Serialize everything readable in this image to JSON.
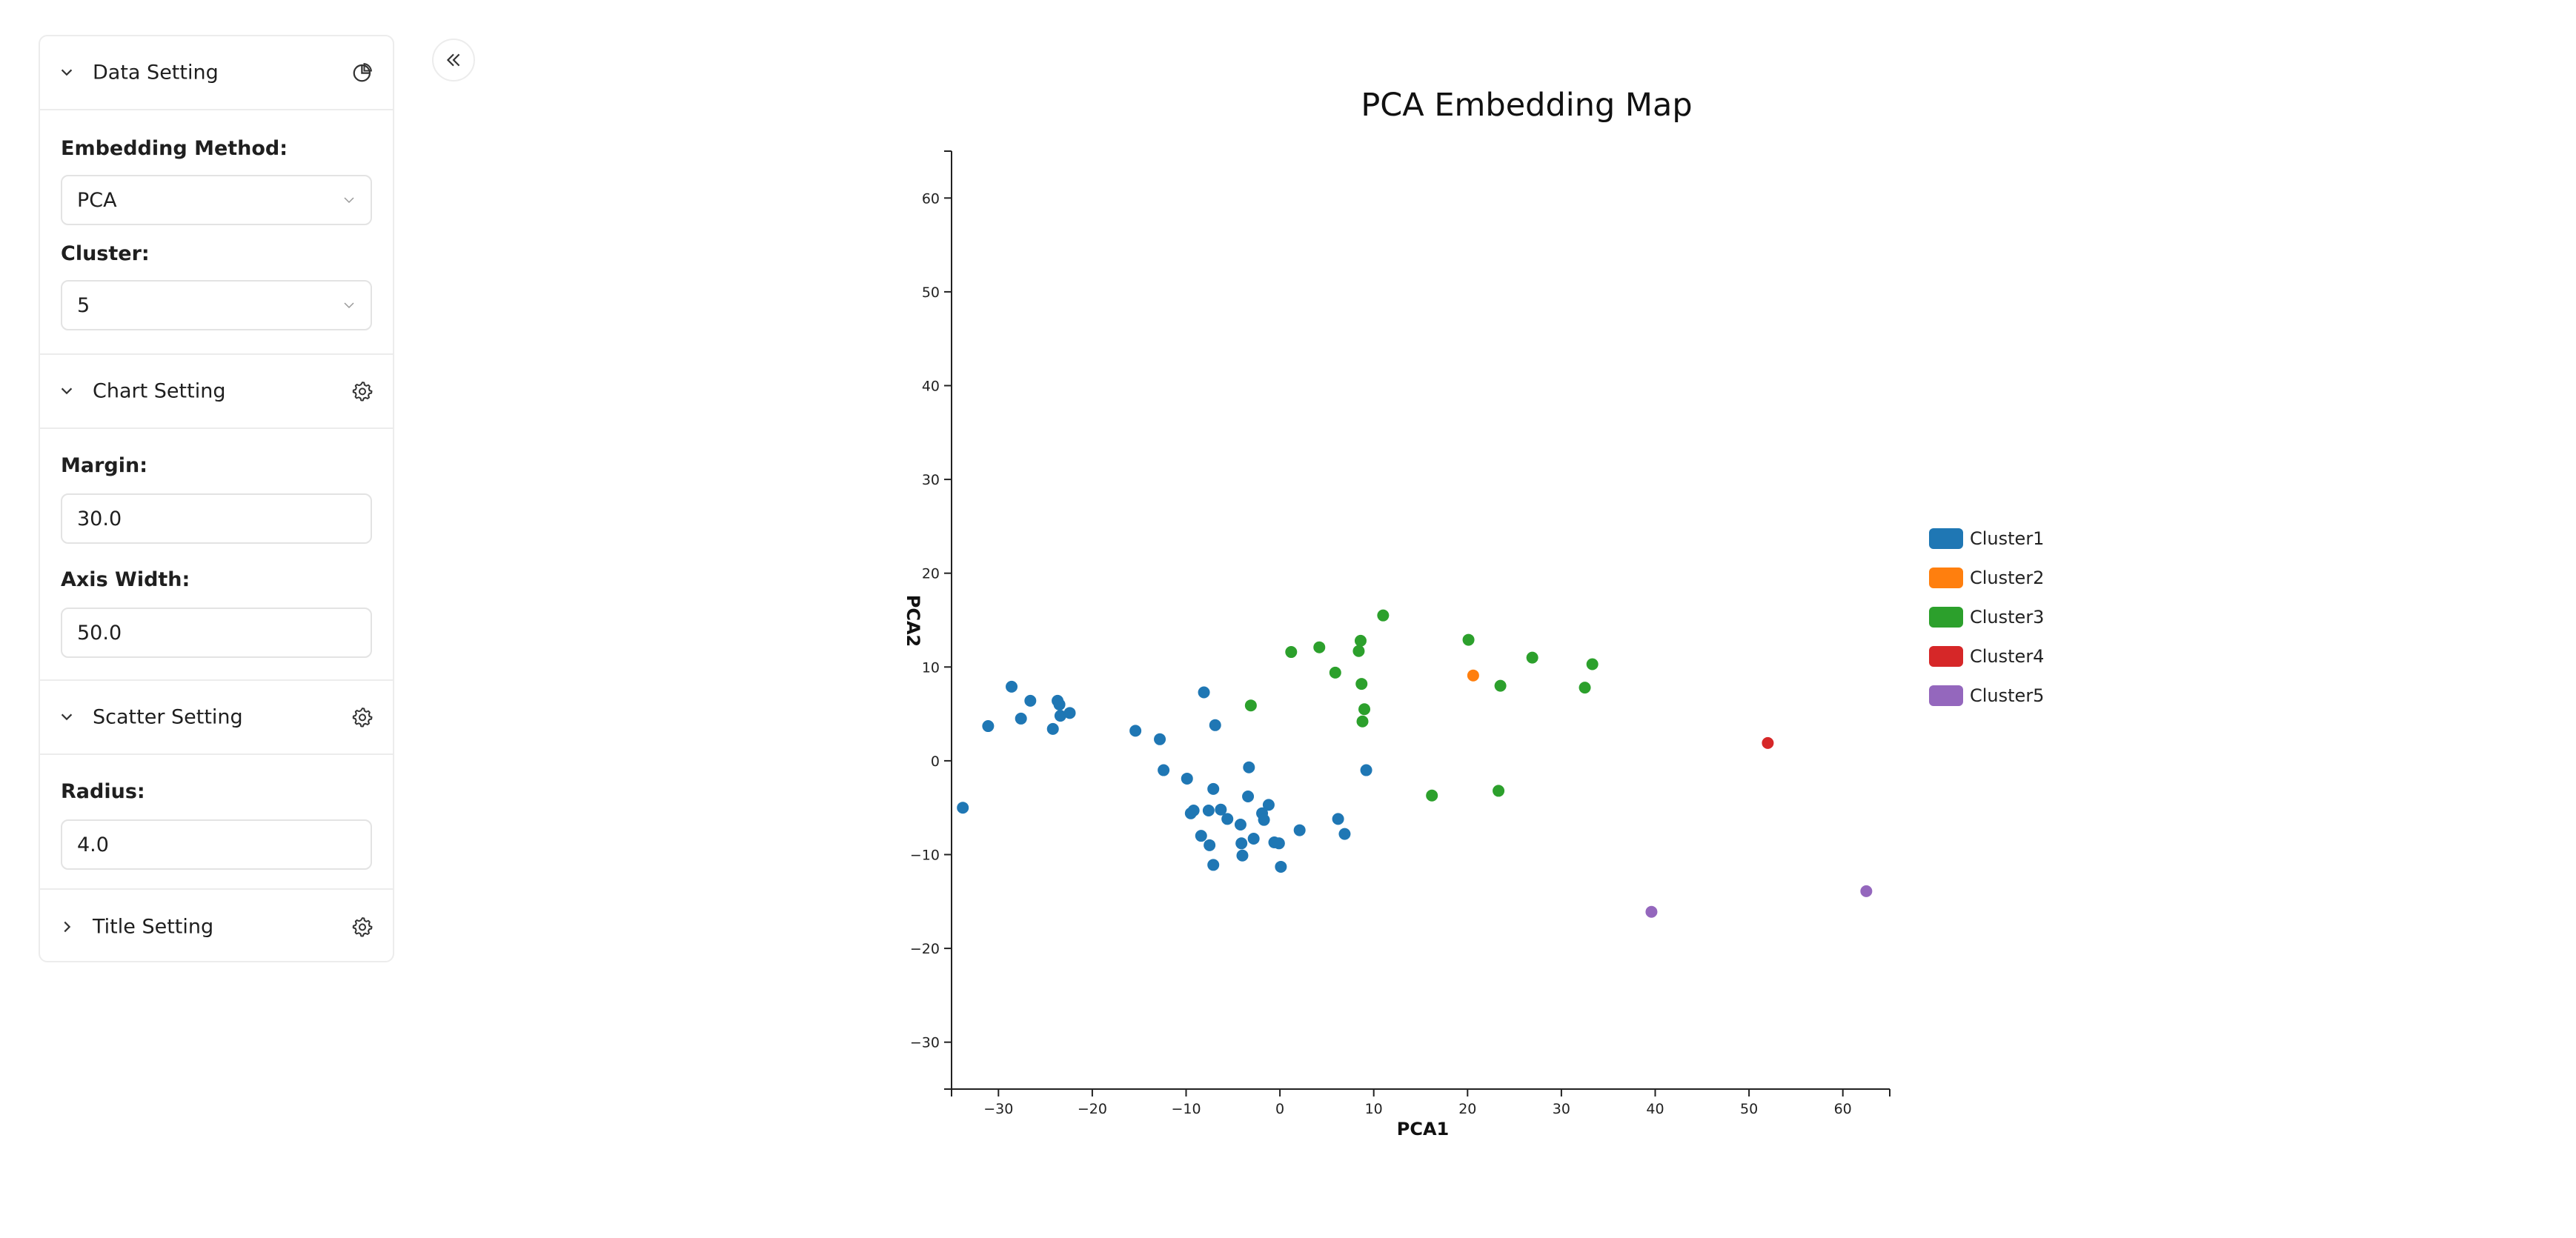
{
  "sidebar": {
    "data_setting": {
      "title": "Data Setting",
      "icon": "pie-chart-icon",
      "embedding_label": "Embedding Method:",
      "embedding_value": "PCA",
      "cluster_label": "Cluster:",
      "cluster_value": "5"
    },
    "chart_setting": {
      "title": "Chart Setting",
      "icon": "gear-icon",
      "margin_label": "Margin:",
      "margin_value": "30.0",
      "axis_width_label": "Axis Width:",
      "axis_width_value": "50.0"
    },
    "scatter_setting": {
      "title": "Scatter Setting",
      "icon": "gear-icon",
      "radius_label": "Radius:",
      "radius_value": "4.0"
    },
    "title_setting": {
      "title": "Title Setting",
      "icon": "gear-icon"
    }
  },
  "collapse_button": {
    "icon": "double-chevron-left-icon"
  },
  "chart_data": {
    "type": "scatter",
    "title": "PCA Embedding Map",
    "xlabel": "PCA1",
    "ylabel": "PCA2",
    "xlim": [
      -35,
      65
    ],
    "ylim": [
      -35,
      65
    ],
    "xticks": [
      -30,
      -20,
      -10,
      0,
      10,
      20,
      30,
      40,
      50,
      60
    ],
    "yticks": [
      -30,
      -20,
      -10,
      0,
      10,
      20,
      30,
      40,
      50,
      60
    ],
    "grid": false,
    "legend_position": "right",
    "series": [
      {
        "name": "Cluster1",
        "color": "#1f77b4",
        "points": [
          [
            -33.8,
            -5.0
          ],
          [
            -31.1,
            3.7
          ],
          [
            -28.6,
            7.9
          ],
          [
            -27.6,
            4.5
          ],
          [
            -26.6,
            6.4
          ],
          [
            -24.2,
            3.4
          ],
          [
            -23.7,
            6.4
          ],
          [
            -23.5,
            6.0
          ],
          [
            -23.4,
            4.8
          ],
          [
            -22.4,
            5.1
          ],
          [
            -15.4,
            3.2
          ],
          [
            -12.8,
            2.3
          ],
          [
            -12.4,
            -1.0
          ],
          [
            -9.9,
            -1.9
          ],
          [
            -9.5,
            -5.6
          ],
          [
            -9.2,
            -5.3
          ],
          [
            -8.4,
            -8.0
          ],
          [
            -8.1,
            7.3
          ],
          [
            -7.6,
            -5.3
          ],
          [
            -7.5,
            -9.0
          ],
          [
            -7.1,
            -3.0
          ],
          [
            -7.1,
            -11.1
          ],
          [
            -6.9,
            3.8
          ],
          [
            -6.3,
            -5.2
          ],
          [
            -5.6,
            -6.2
          ],
          [
            -4.2,
            -6.8
          ],
          [
            -4.1,
            -8.8
          ],
          [
            -4.0,
            -10.1
          ],
          [
            -3.4,
            -3.8
          ],
          [
            -3.3,
            -0.7
          ],
          [
            -2.8,
            -8.3
          ],
          [
            -1.9,
            -5.6
          ],
          [
            -1.7,
            -6.3
          ],
          [
            -1.2,
            -4.7
          ],
          [
            -0.6,
            -8.7
          ],
          [
            -0.1,
            -8.8
          ],
          [
            0.1,
            -11.3
          ],
          [
            2.1,
            -7.4
          ],
          [
            6.2,
            -6.2
          ],
          [
            6.9,
            -7.8
          ],
          [
            9.2,
            -1.0
          ]
        ]
      },
      {
        "name": "Cluster2",
        "color": "#ff7f0e",
        "points": [
          [
            20.6,
            9.1
          ]
        ]
      },
      {
        "name": "Cluster3",
        "color": "#2ca02c",
        "points": [
          [
            -3.1,
            5.9
          ],
          [
            1.2,
            11.6
          ],
          [
            4.2,
            12.1
          ],
          [
            5.9,
            9.4
          ],
          [
            8.4,
            11.7
          ],
          [
            8.6,
            12.8
          ],
          [
            8.7,
            8.2
          ],
          [
            8.8,
            4.2
          ],
          [
            9.0,
            5.5
          ],
          [
            11.0,
            15.5
          ],
          [
            16.2,
            -3.7
          ],
          [
            20.1,
            12.9
          ],
          [
            23.3,
            -3.2
          ],
          [
            23.5,
            8.0
          ],
          [
            26.9,
            11.0
          ],
          [
            32.5,
            7.8
          ],
          [
            33.3,
            10.3
          ]
        ]
      },
      {
        "name": "Cluster4",
        "color": "#d62728",
        "points": [
          [
            52.0,
            1.9
          ]
        ]
      },
      {
        "name": "Cluster5",
        "color": "#9467bd",
        "points": [
          [
            39.6,
            -16.1
          ],
          [
            62.5,
            -13.9
          ]
        ]
      }
    ]
  }
}
